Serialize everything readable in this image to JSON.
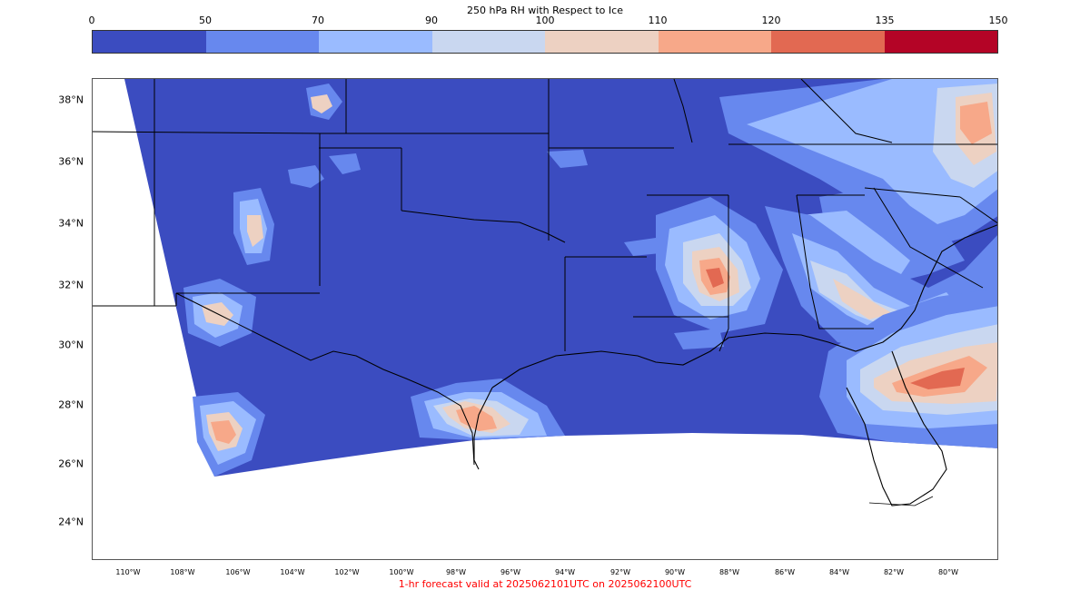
{
  "colorbar": {
    "title": "250 hPa RH with Respect to Ice",
    "ticks": [
      "0",
      "50",
      "70",
      "90",
      "100",
      "110",
      "120",
      "135",
      "150"
    ],
    "colors": [
      "#3b4cc0",
      "#6788ee",
      "#9abbff",
      "#c9d7f0",
      "#edd1c2",
      "#f7a889",
      "#e26952",
      "#b40426"
    ]
  },
  "map": {
    "lat_labels": [
      "38°N",
      "36°N",
      "34°N",
      "32°N",
      "30°N",
      "28°N",
      "26°N",
      "24°N"
    ],
    "lon_labels": [
      "110°W",
      "108°W",
      "106°W",
      "104°W",
      "102°W",
      "100°W",
      "98°W",
      "96°W",
      "94°W",
      "92°W",
      "90°W",
      "88°W",
      "86°W",
      "84°W",
      "82°W",
      "80°W"
    ],
    "background_color": "#3b4cc0",
    "features": [
      "state-borders",
      "coastline"
    ]
  },
  "footer": {
    "text": "1-hr forecast valid at 2025062101UTC on 2025062100UTC",
    "color": "#ff0000"
  }
}
